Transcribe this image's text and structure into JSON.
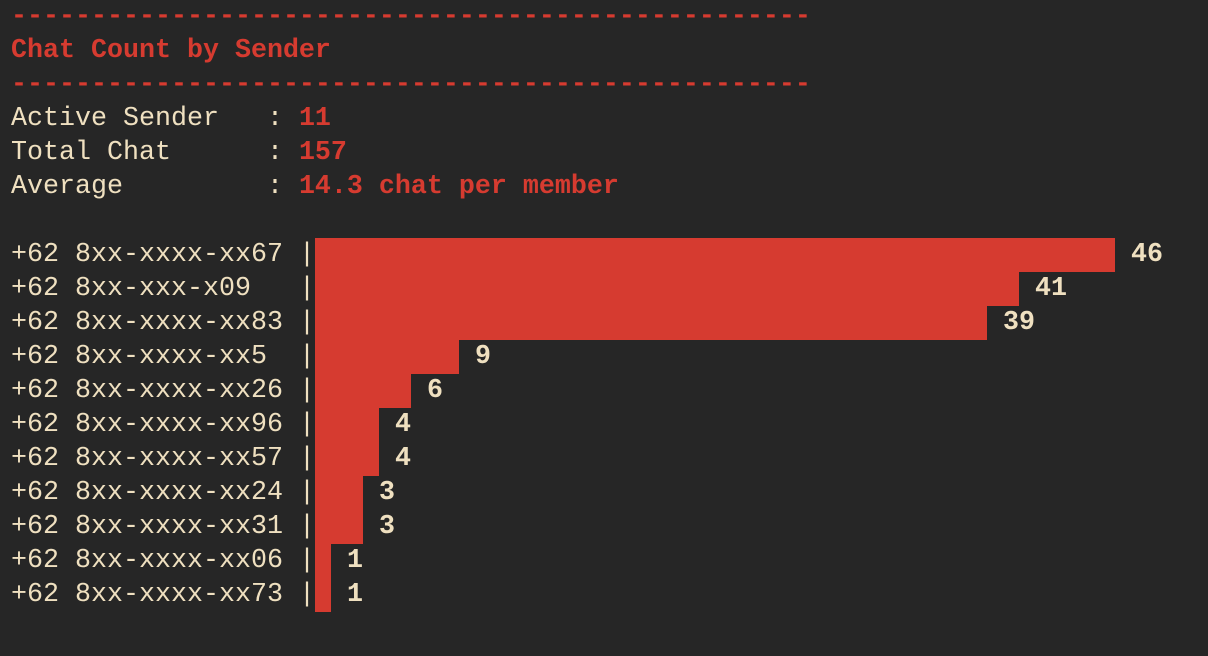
{
  "header": {
    "separator": "--------------------------------------------------",
    "title": "Chat Count by Sender"
  },
  "stats": [
    {
      "label": "Active Sender   : ",
      "value": "11"
    },
    {
      "label": "Total Chat      : ",
      "value": "157"
    },
    {
      "label": "Average         : ",
      "value": "14.3 chat per member"
    }
  ],
  "colors": {
    "accent": "#d63b30",
    "text": "#efe0c0",
    "background": "#262626"
  },
  "chart_data": {
    "type": "bar",
    "orientation": "horizontal",
    "title": "Chat Count by Sender",
    "categories": [
      "+62 8xx-xxxx-xx67",
      "+62 8xx-xxx-x09",
      "+62 8xx-xxxx-xx83",
      "+62 8xx-xxxx-xx5",
      "+62 8xx-xxxx-xx26",
      "+62 8xx-xxxx-xx96",
      "+62 8xx-xxxx-xx57",
      "+62 8xx-xxxx-xx24",
      "+62 8xx-xxxx-xx31",
      "+62 8xx-xxxx-xx06",
      "+62 8xx-xxxx-xx73"
    ],
    "values": [
      46,
      41,
      39,
      9,
      6,
      4,
      4,
      3,
      3,
      1,
      1
    ],
    "bar_color": "#d63b30"
  }
}
